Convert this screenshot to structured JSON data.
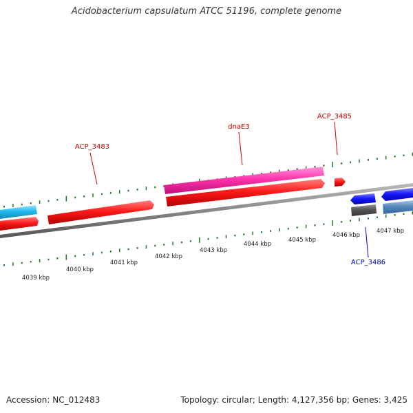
{
  "title": "Acidobacterium capsulatum ATCC 51196, complete genome",
  "footer": {
    "accession": "Accession: NC_012483",
    "summary": "Topology: circular; Length: 4,127,356 bp; Genes: 3,425"
  },
  "ticks": [
    "4039 kbp",
    "4040 kbp",
    "4041 kbp",
    "4042 kbp",
    "4043 kbp",
    "4044 kbp",
    "4045 kbp",
    "4046 kbp",
    "4047 kbp"
  ],
  "genes": [
    {
      "name": "ACP_3483",
      "color": "#cc0000"
    },
    {
      "name": "dnaE3",
      "color": "#cc0000"
    },
    {
      "name": "ACP_3485",
      "color": "#cc0000"
    },
    {
      "name": "ACP_3486",
      "color": "#0000cc"
    }
  ],
  "colors": {
    "forward_cds": "#ff1a1a",
    "highlight_cds": "#ff33aa",
    "reverse_cds": "#1a1aff",
    "cyan_feature": "#22bbee",
    "steel_feature": "#5588bb",
    "gray_feature": "#555555",
    "backbone": "#888888",
    "tick": "#227722"
  }
}
